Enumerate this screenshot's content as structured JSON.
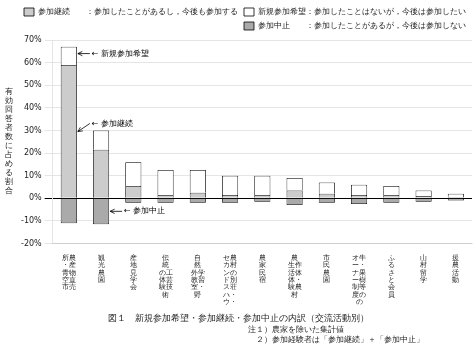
{
  "chart_data": {
    "type": "bar",
    "stacked": true,
    "title": "図１　新規参加希望・参加継続・参加中止の内訳（交流活動別）",
    "notes": [
      "注１）農家を除いた集計値",
      "　２）参加経験者は「参加継続」＋「参加中止」"
    ],
    "ylabel": "有\n効\n回\n答\n者\n数\nに\n占\nめ\nる\n割\n合",
    "categories": [
      "所農\n・産\n青物\n空直\n市売",
      "観\n光\n農\n園",
      "産\n地\n見\n学\n会",
      "伝\n統\nの工\n体芸\n験技\n術",
      "自\n然\n外学\n教習\n室・\n野",
      "セ農\nカ村\nンの\nド別\nス荘\nハ・\nウ・",
      "農\n家\n民\n宿",
      "農\n生作\n活体\n体・\n験農\n村",
      "市\n民\n農\n園",
      "オ牛\nー・\nナ果\nー樹\n制等\n度の\nの",
      "ふ\nる\nさ\nと\n会\n員",
      "山\n村\n留\n学",
      "援\n農\n活\n動"
    ],
    "series": [
      {
        "name": "参加継続　　：参加したことがあるし，今後も参加する",
        "color": "#cccccc",
        "values": [
          59.0,
          21.5,
          5.5,
          1.5,
          2.5,
          1.5,
          1.5,
          3.5,
          2.0,
          1.5,
          1.5,
          1.0,
          0.5
        ]
      },
      {
        "name": "新規参加希望：参加したことはないが，今後は参加したい",
        "color": "#ffffff",
        "values": [
          8.0,
          8.5,
          10.5,
          11.0,
          10.0,
          8.5,
          8.5,
          5.5,
          5.0,
          4.5,
          4.0,
          2.5,
          1.5
        ]
      },
      {
        "name": "参加中止　　：参加したことがあるが，今後は参加しない",
        "color": "#aaaaaa",
        "values": [
          -11.0,
          -11.5,
          -2.0,
          -2.0,
          -2.0,
          -2.0,
          -1.5,
          -3.0,
          -2.0,
          -2.5,
          -2.0,
          -1.5,
          -1.0
        ]
      }
    ],
    "ylim": [
      -20,
      70
    ],
    "yticks": [
      {
        "value": -20,
        "label": "-20%"
      },
      {
        "value": -10,
        "label": "-10%"
      },
      {
        "value": 0,
        "label": "0%"
      },
      {
        "value": 10,
        "label": "10%"
      },
      {
        "value": 20,
        "label": "20%"
      },
      {
        "value": 30,
        "label": "30%"
      },
      {
        "value": 40,
        "label": "40%"
      },
      {
        "value": 50,
        "label": "50%"
      },
      {
        "value": 60,
        "label": "60%"
      },
      {
        "value": 70,
        "label": "70%"
      }
    ],
    "grid": true,
    "legend": "upper right",
    "annotations": [
      {
        "text": "← 新規参加希望",
        "x": "所農\n・産\n青物\n空直\n市売",
        "y": 64.0
      },
      {
        "text": "← 参加継続",
        "x": "所農\n・産\n青物\n空直\n市売",
        "y": 29.5
      },
      {
        "text": "← 参加中止",
        "x": "観\n光\n農\n園",
        "y": -5.75
      }
    ]
  }
}
